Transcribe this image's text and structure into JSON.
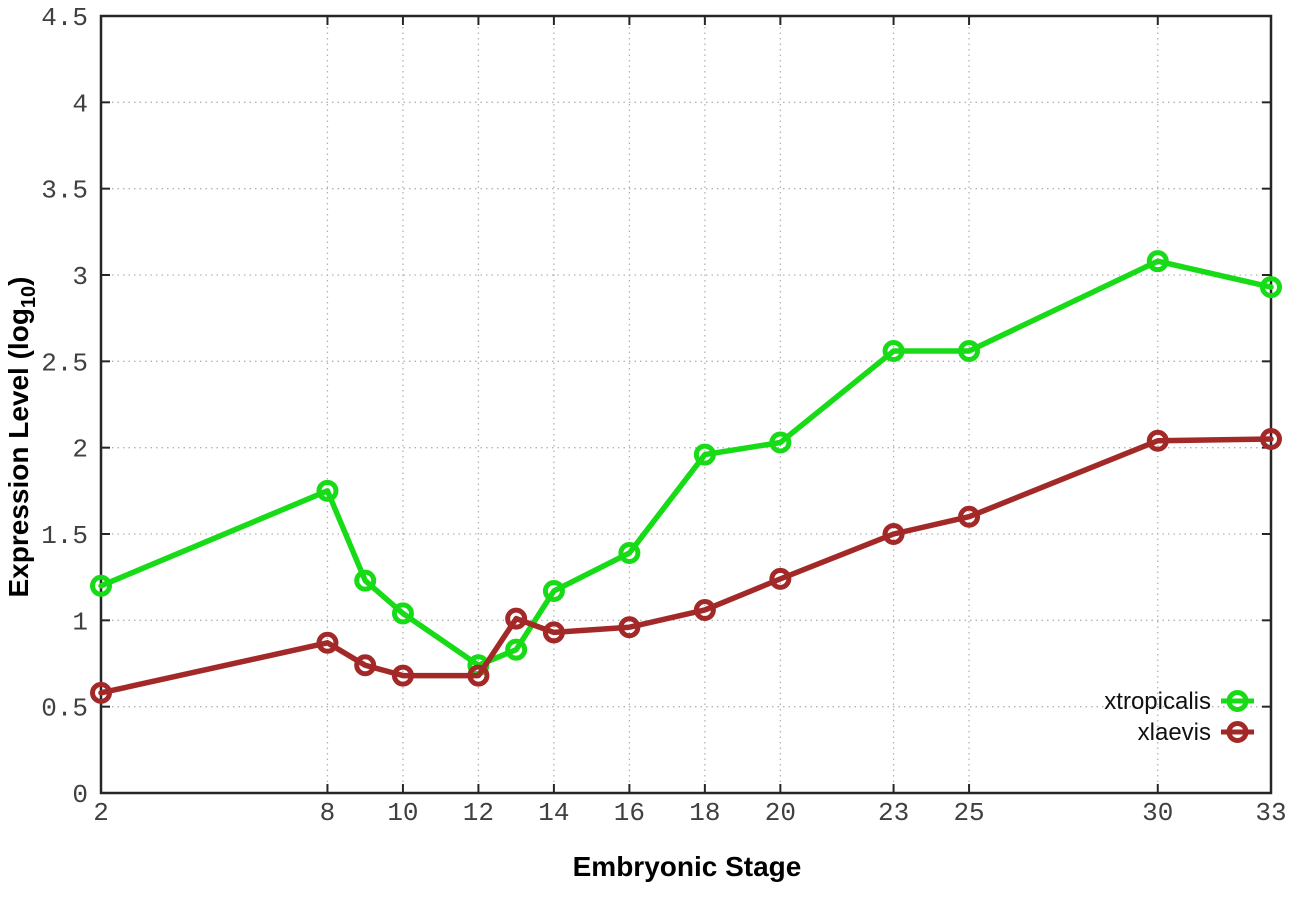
{
  "chart_data": {
    "type": "line",
    "title": "",
    "xlabel": "Embryonic Stage",
    "ylabel": "Expression Level (log10)",
    "ylabel_rich": {
      "pre": "Expression Level (log",
      "sub": "10",
      "post": ")"
    },
    "x": [
      2,
      8,
      9,
      10,
      12,
      13,
      14,
      16,
      18,
      20,
      23,
      25,
      30,
      33
    ],
    "series": [
      {
        "name": "xtropicalis",
        "color": "#16db16",
        "values": [
          1.2,
          1.75,
          1.23,
          1.04,
          0.74,
          0.83,
          1.17,
          1.39,
          1.96,
          2.03,
          2.56,
          2.56,
          3.08,
          2.93
        ]
      },
      {
        "name": "xlaevis",
        "color": "#a32929",
        "values": [
          0.58,
          0.87,
          0.74,
          0.68,
          0.68,
          1.01,
          0.93,
          0.96,
          1.06,
          1.24,
          1.5,
          1.6,
          2.04,
          2.05
        ]
      }
    ],
    "xlim": [
      2,
      33
    ],
    "ylim": [
      0,
      4.5
    ],
    "xticks": {
      "values": [
        2,
        8,
        10,
        12,
        14,
        16,
        18,
        20,
        23,
        25,
        30,
        33
      ],
      "labels": [
        "2",
        "8",
        "10",
        "12",
        "14",
        "16",
        "18",
        "20",
        "23",
        "25",
        "30",
        "33"
      ]
    },
    "yticks": {
      "values": [
        0,
        0.5,
        1,
        1.5,
        2,
        2.5,
        3,
        3.5,
        4,
        4.5
      ],
      "labels": [
        "0",
        "0.5",
        "1",
        "1.5",
        "2",
        "2.5",
        "3",
        "3.5",
        "4",
        "4.5"
      ]
    },
    "grid": true,
    "marker": "open-circle",
    "legend": {
      "position": "inside-bottom-right",
      "entries": [
        "xtropicalis",
        "xlaevis"
      ]
    },
    "colors": {
      "background": "#ffffff",
      "border": "#262626",
      "grid": "#b3b3b3",
      "tick_label": "#404040",
      "axis_label": "#000000",
      "legend_text": "#111111"
    }
  }
}
